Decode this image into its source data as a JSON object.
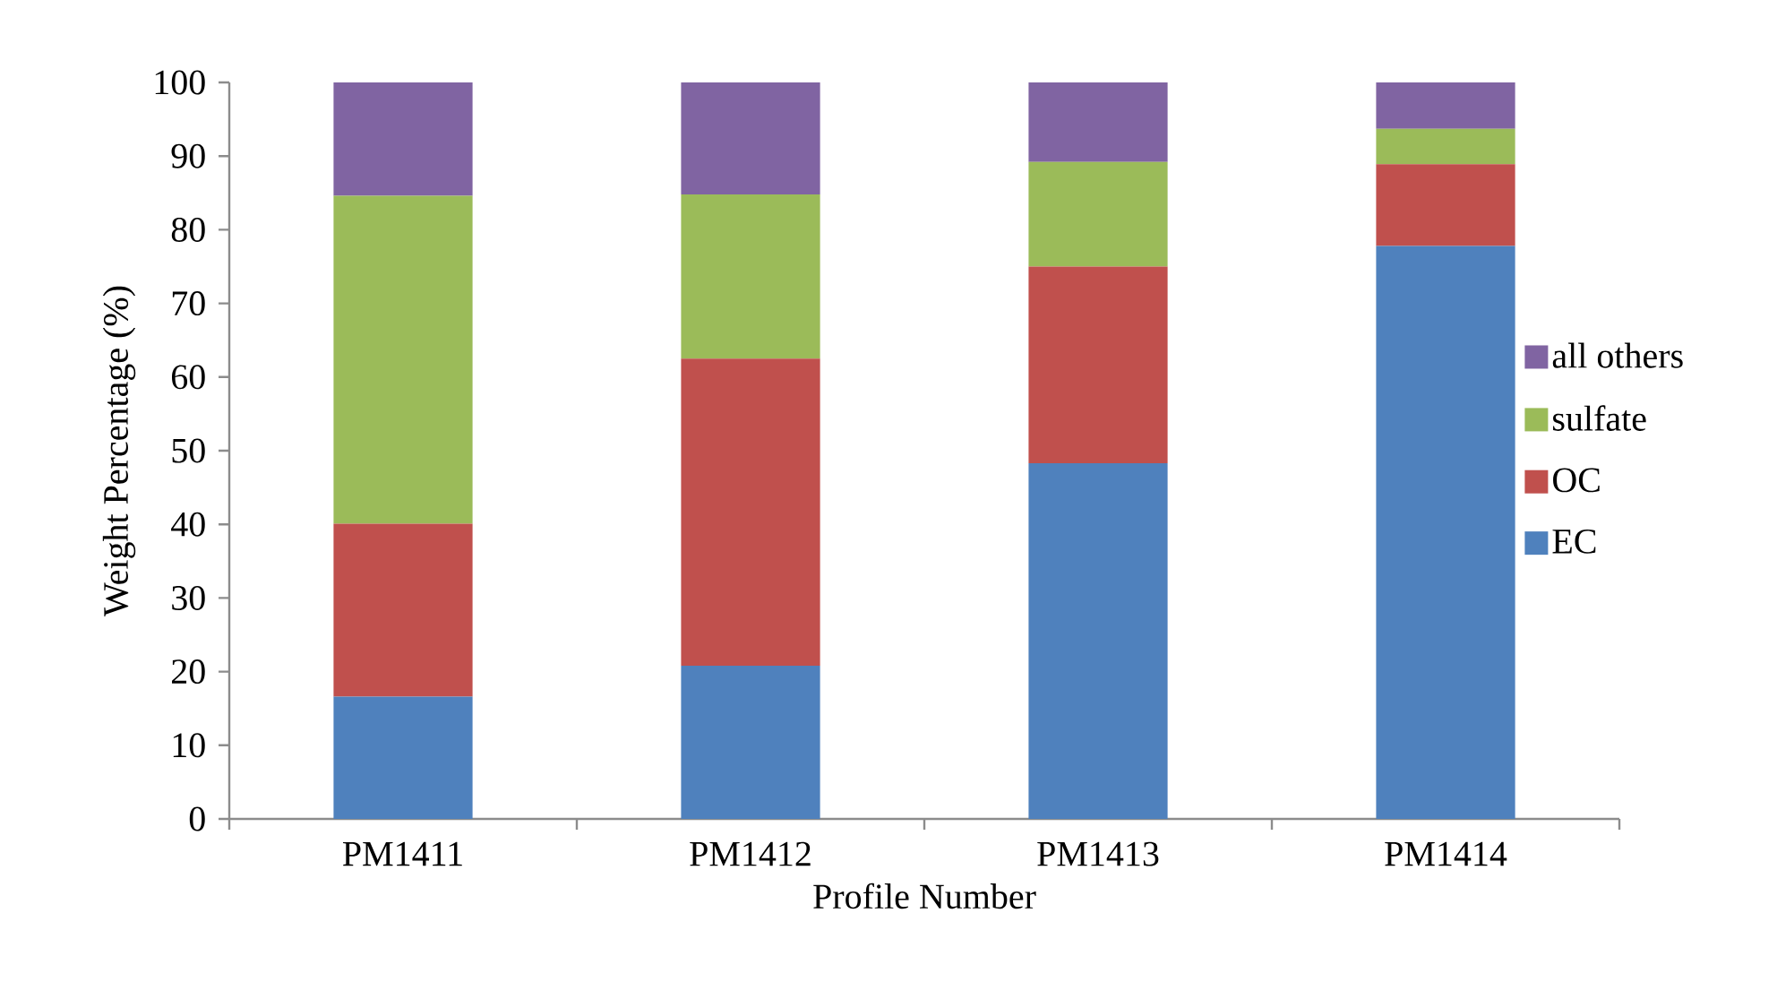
{
  "chart_data": {
    "type": "bar",
    "stacked": true,
    "xlabel": "Profile Number",
    "ylabel": "Weight Percentage (%)",
    "categories": [
      "PM1411",
      "PM1412",
      "PM1413",
      "PM1414"
    ],
    "series": [
      {
        "name": "EC",
        "color": "#4f81bd",
        "values": [
          16.6,
          20.8,
          48.3,
          77.8
        ]
      },
      {
        "name": "OC",
        "color": "#c0504d",
        "values": [
          23.5,
          41.7,
          26.7,
          11.1
        ]
      },
      {
        "name": "sulfate",
        "color": "#9bbb59",
        "values": [
          44.5,
          22.3,
          14.2,
          4.8
        ]
      },
      {
        "name": "all others",
        "color": "#8064a2",
        "values": [
          15.4,
          15.2,
          10.8,
          6.3
        ]
      }
    ],
    "ylim": [
      0,
      100
    ],
    "yticks": [
      0,
      10,
      20,
      30,
      40,
      50,
      60,
      70,
      80,
      90,
      100
    ],
    "legend": "right"
  }
}
